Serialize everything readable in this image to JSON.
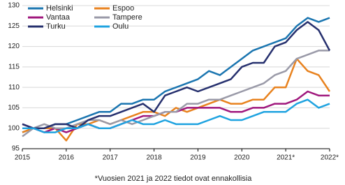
{
  "chart_data": {
    "type": "line",
    "note": "*Vuosien 2021 ja 2022 tiedot ovat ennakollisia",
    "x": [
      2015,
      2015.25,
      2015.5,
      2015.75,
      2016,
      2016.25,
      2016.5,
      2016.75,
      2017,
      2017.25,
      2017.5,
      2017.75,
      2018,
      2018.25,
      2018.5,
      2018.75,
      2019,
      2019.25,
      2019.5,
      2019.75,
      2020,
      2020.25,
      2020.5,
      2020.75,
      2021,
      2021.25,
      2021.5,
      2021.75,
      2022
    ],
    "series": [
      {
        "name": "Helsinki",
        "color": "#1a75b0",
        "values": [
          99,
          100,
          100,
          101,
          101,
          102,
          103,
          104,
          104,
          106,
          106,
          107,
          107,
          109,
          110,
          111,
          112,
          114,
          113,
          115,
          117,
          119,
          120,
          121,
          122,
          125,
          127,
          126,
          127
        ]
      },
      {
        "name": "Espoo",
        "color": "#e8821e",
        "values": [
          99,
          100,
          100,
          100,
          97,
          101,
          101,
          102,
          101,
          102,
          103,
          104,
          104,
          103,
          105,
          104,
          105,
          106,
          107,
          106,
          106,
          107,
          107,
          110,
          110,
          117,
          114,
          113,
          109
        ]
      },
      {
        "name": "Vantaa",
        "color": "#a0187d",
        "values": [
          101,
          100,
          99,
          100,
          99,
          100,
          101,
          100,
          100,
          101,
          102,
          103,
          103,
          104,
          104,
          105,
          105,
          105,
          105,
          104,
          104,
          105,
          105,
          106,
          106,
          107,
          109,
          108,
          108
        ]
      },
      {
        "name": "Tampere",
        "color": "#9a9aa8",
        "values": [
          98,
          100,
          101,
          100,
          100,
          101,
          102,
          102,
          101,
          102,
          101,
          102,
          103,
          104,
          104,
          106,
          106,
          107,
          107,
          108,
          109,
          110,
          111,
          113,
          114,
          117,
          118,
          119,
          119
        ]
      },
      {
        "name": "Turku",
        "color": "#26306e",
        "values": [
          101,
          100,
          100,
          101,
          101,
          100,
          102,
          103,
          103,
          104,
          105,
          106,
          104,
          108,
          109,
          110,
          109,
          110,
          111,
          112,
          115,
          116,
          116,
          120,
          121,
          124,
          126,
          124,
          119
        ]
      },
      {
        "name": "Oulu",
        "color": "#1fa3e0",
        "values": [
          100,
          100,
          99,
          99,
          100,
          100,
          101,
          100,
          100,
          101,
          102,
          101,
          101,
          102,
          101,
          101,
          101,
          102,
          103,
          102,
          102,
          103,
          104,
          104,
          104,
          106,
          107,
          105,
          106
        ]
      }
    ],
    "xlim": [
      2015,
      2022
    ],
    "xticks": [
      2015,
      2016,
      2017,
      2018,
      2019,
      2020,
      {
        "value": 2021,
        "label": "2021*"
      },
      {
        "value": 2022,
        "label": "2022*"
      }
    ],
    "ylim": [
      95,
      130
    ],
    "yticks": [
      95,
      100,
      105,
      110,
      115,
      120,
      125,
      130
    ],
    "grid": true
  }
}
